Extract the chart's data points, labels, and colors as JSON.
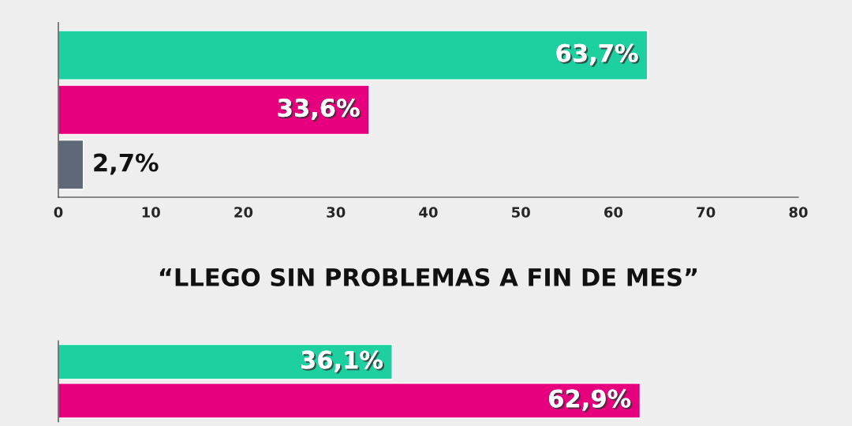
{
  "chart_data": [
    {
      "type": "bar",
      "orientation": "horizontal",
      "categories": [
        null,
        null,
        null
      ],
      "values": [
        63.7,
        33.6,
        2.7
      ],
      "colors": [
        "#1ecfa0",
        "#e6007e",
        "#5f6878"
      ],
      "value_labels": [
        "63,7%",
        "33,6%",
        "2,7%"
      ],
      "xlim": [
        0,
        80
      ],
      "xticks": [
        0,
        10,
        20,
        30,
        40,
        50,
        60,
        70,
        80
      ],
      "grid": false,
      "legend": false
    },
    {
      "type": "bar",
      "orientation": "horizontal",
      "title": "“LLEGO SIN PROBLEMAS A FIN DE MES”",
      "categories": [
        null,
        null
      ],
      "values": [
        36.1,
        62.9
      ],
      "colors": [
        "#1ecfa0",
        "#e6007e"
      ],
      "value_labels": [
        "36,1%",
        "62,9%"
      ],
      "xlim": [
        0,
        80
      ],
      "tick_labels": false,
      "grid": false,
      "legend": false
    }
  ]
}
